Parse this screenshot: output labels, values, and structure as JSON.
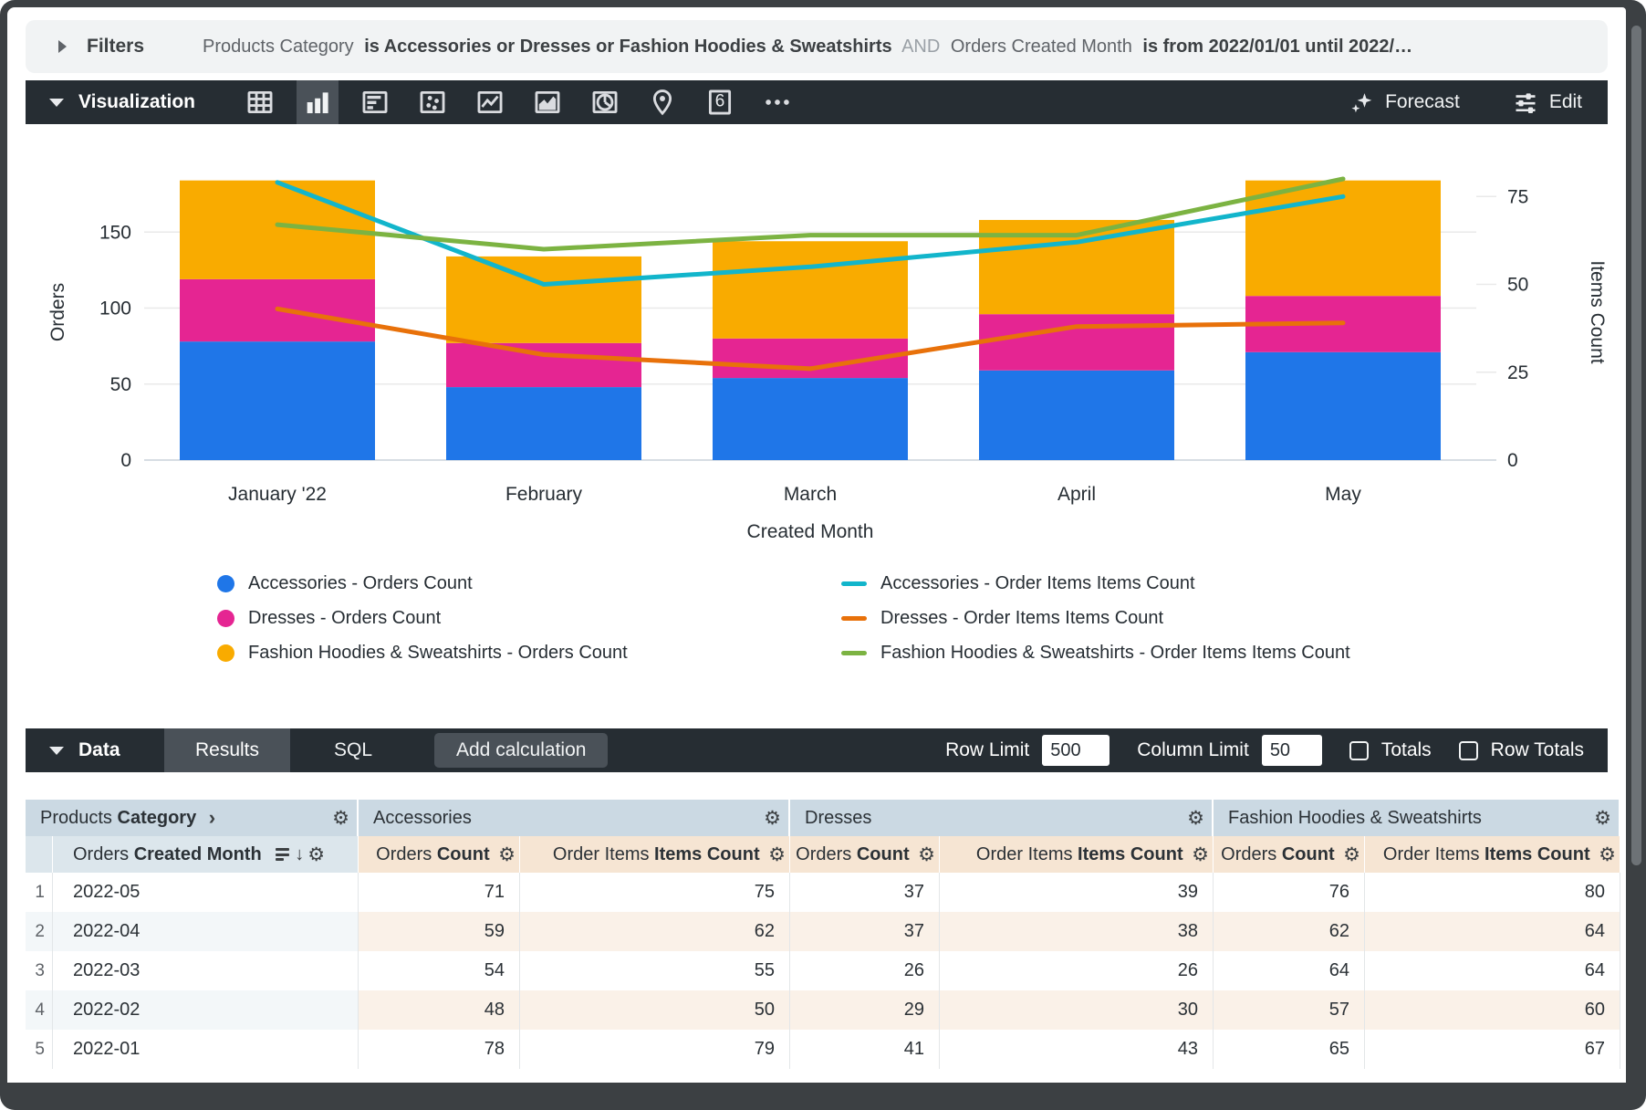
{
  "filters": {
    "title": "Filters",
    "parts": [
      {
        "text": "Products Category",
        "style": "normal"
      },
      {
        "text": "is Accessories or Dresses or Fashion Hoodies & Sweatshirts",
        "style": "bold"
      },
      {
        "text": "AND",
        "style": "faint"
      },
      {
        "text": "Orders Created Month",
        "style": "normal"
      },
      {
        "text": "is from 2022/01/01 until 2022/…",
        "style": "bold"
      }
    ]
  },
  "viz": {
    "title": "Visualization",
    "icons": [
      "table-chart-icon",
      "column-chart-icon",
      "bar-chart-icon",
      "scatter-chart-icon",
      "line-chart-icon",
      "area-chart-icon",
      "pie-chart-icon",
      "map-chart-icon",
      "single-value-icon",
      "more-viz-icon"
    ],
    "active_icon": "column-chart-icon",
    "single_value_glyph": "6",
    "forecast_label": "Forecast",
    "edit_label": "Edit"
  },
  "chart_data": {
    "type": "combo (stacked bar + line)",
    "x": [
      "January '22",
      "February",
      "March",
      "April",
      "May"
    ],
    "x_axis_label": "Created Month",
    "y_left": {
      "label": "Orders",
      "ticks": [
        0,
        50,
        100,
        150
      ],
      "scale_max": 185
    },
    "y_right": {
      "label": "Items Count",
      "ticks": [
        0,
        25,
        50,
        75
      ],
      "scale_max": 80
    },
    "grid": true,
    "legend_position": "bottom",
    "bar_series": [
      {
        "name": "Accessories - Orders Count",
        "color": "#1F76E8",
        "values": [
          78,
          48,
          54,
          59,
          71
        ]
      },
      {
        "name": "Dresses - Orders Count",
        "color": "#E52592",
        "values": [
          41,
          29,
          26,
          37,
          37
        ]
      },
      {
        "name": "Fashion Hoodies & Sweatshirts - Orders Count",
        "color": "#F9AB00",
        "values": [
          65,
          57,
          64,
          62,
          76
        ]
      }
    ],
    "line_series": [
      {
        "name": "Accessories - Order Items Items Count",
        "color": "#12B5CB",
        "values": [
          79,
          50,
          55,
          62,
          75
        ]
      },
      {
        "name": "Dresses - Order Items Items Count",
        "color": "#E8710A",
        "values": [
          43,
          30,
          26,
          38,
          39
        ]
      },
      {
        "name": "Fashion Hoodies & Sweatshirts - Order Items Items Count",
        "color": "#7CB342",
        "values": [
          67,
          60,
          64,
          64,
          80
        ]
      }
    ]
  },
  "data_bar": {
    "title": "Data",
    "tabs": [
      {
        "label": "Results",
        "active": true
      },
      {
        "label": "SQL",
        "active": false
      }
    ],
    "add_calculation_label": "Add calculation",
    "row_limit_label": "Row Limit",
    "row_limit_value": "500",
    "column_limit_label": "Column Limit",
    "column_limit_value": "50",
    "totals_label": "Totals",
    "row_totals_label": "Row Totals",
    "totals_checked": false,
    "row_totals_checked": false
  },
  "table": {
    "dimension_group": {
      "normal": "Products",
      "bold": "Category"
    },
    "groups": [
      "Accessories",
      "Dresses",
      "Fashion Hoodies & Sweatshirts"
    ],
    "dimension_header": {
      "normal": "Orders",
      "bold": "Created Month"
    },
    "measure_headers": [
      {
        "normal": "Orders",
        "bold": "Count"
      },
      {
        "normal": "Order Items",
        "bold": "Items Count"
      }
    ],
    "rows": [
      {
        "n": "1",
        "month": "2022-05",
        "values": [
          71,
          75,
          37,
          39,
          76,
          80
        ]
      },
      {
        "n": "2",
        "month": "2022-04",
        "values": [
          59,
          62,
          37,
          38,
          62,
          64
        ]
      },
      {
        "n": "3",
        "month": "2022-03",
        "values": [
          54,
          55,
          26,
          26,
          64,
          64
        ]
      },
      {
        "n": "4",
        "month": "2022-02",
        "values": [
          48,
          50,
          29,
          30,
          57,
          60
        ]
      },
      {
        "n": "5",
        "month": "2022-01",
        "values": [
          78,
          79,
          41,
          43,
          65,
          67
        ]
      }
    ]
  },
  "colors": {
    "frame": "#3C4043",
    "dark_bar": "#262D33",
    "active_tab": "#4A5158",
    "group_header_bg": "#CBD9E3",
    "dim_header_bg": "#DCE6EC",
    "measure_header_bg": "#F6E5D3"
  }
}
